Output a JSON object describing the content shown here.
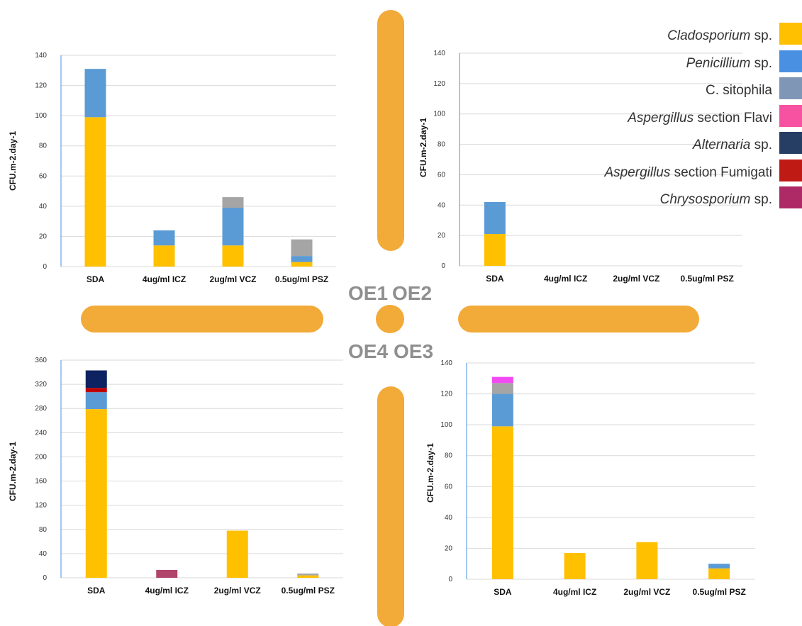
{
  "legend": [
    {
      "genus": "Cladosporium",
      "suffix": " sp.",
      "italic": true,
      "color": "#FFC000"
    },
    {
      "genus": "Penicillium",
      "suffix": " sp.",
      "italic": true,
      "color": "#4A90E2"
    },
    {
      "genus": "",
      "suffix": "C. sitophila",
      "italic": false,
      "color": "#8096B6"
    },
    {
      "genus": "Aspergillus",
      "suffix": " section Flavi",
      "italic": true,
      "color": "#F752A2"
    },
    {
      "genus": "Alternaria",
      "suffix": " sp.",
      "italic": true,
      "color": "#263E63"
    },
    {
      "genus": "Aspergillus",
      "suffix": " section  Fumigati",
      "italic": true,
      "color": "#C01A14"
    },
    {
      "genus": "Chrysosporium",
      "suffix": " sp.",
      "italic": true,
      "color": "#AD2A66"
    }
  ],
  "zones": {
    "oe1": "OE1",
    "oe2": "OE2",
    "oe3": "OE3",
    "oe4": "OE4"
  },
  "decor_color": "#F2AA38",
  "chart_data": [
    {
      "type": "bar",
      "stacked": true,
      "panel": "top-left",
      "ylabel": "CFU.m-2.day-1",
      "ylim": [
        0,
        140
      ],
      "yticks": [
        0,
        20,
        40,
        60,
        80,
        100,
        120,
        140
      ],
      "categories": [
        "SDA",
        "4ug/ml ICZ",
        "2ug/ml VCZ",
        "0.5ug/ml PSZ"
      ],
      "series": [
        {
          "color": "#FFC000",
          "values": [
            99,
            14,
            14,
            3
          ]
        },
        {
          "color": "#5B9BD5",
          "values": [
            32,
            10,
            25,
            4
          ]
        },
        {
          "color": "#A5A5A5",
          "values": [
            0,
            0,
            7,
            11
          ]
        }
      ]
    },
    {
      "type": "bar",
      "stacked": true,
      "panel": "top-right",
      "ylabel": "CFU.m-2.day-1",
      "ylim": [
        0,
        140
      ],
      "yticks": [
        0,
        20,
        40,
        60,
        80,
        100,
        120,
        140
      ],
      "categories": [
        "SDA",
        "4ug/ml ICZ",
        "2ug/ml VCZ",
        "0.5ug/ml PSZ"
      ],
      "series": [
        {
          "color": "#FFC000",
          "values": [
            21,
            0,
            0,
            0
          ]
        },
        {
          "color": "#5B9BD5",
          "values": [
            21,
            0,
            0,
            0
          ]
        }
      ]
    },
    {
      "type": "bar",
      "stacked": true,
      "panel": "bottom-left",
      "ylabel": "CFU.m-2.day-1",
      "ylim": [
        0,
        360
      ],
      "yticks": [
        0,
        40,
        80,
        120,
        160,
        200,
        240,
        280,
        320,
        360
      ],
      "categories": [
        "SDA",
        "4ug/ml ICZ",
        "2ug/ml VCZ",
        "0.5ug/ml PSZ"
      ],
      "series": [
        {
          "color": "#FFC000",
          "values": [
            279,
            0,
            78,
            4
          ]
        },
        {
          "color": "#5B9BD5",
          "values": [
            28,
            0,
            0,
            0
          ]
        },
        {
          "color": "#A5A5A5",
          "values": [
            0,
            0,
            0,
            3
          ]
        },
        {
          "color": "#C00000",
          "values": [
            7,
            0,
            0,
            0
          ]
        },
        {
          "color": "#0D2260",
          "values": [
            29,
            0,
            0,
            0
          ]
        },
        {
          "color": "#B0446A",
          "values": [
            0,
            13,
            0,
            0
          ]
        }
      ]
    },
    {
      "type": "bar",
      "stacked": true,
      "panel": "bottom-right",
      "ylabel": "CFU.m-2.day-1",
      "ylim": [
        0,
        140
      ],
      "yticks": [
        0,
        20,
        40,
        60,
        80,
        100,
        120,
        140
      ],
      "categories": [
        "SDA",
        "4ug/ml ICZ",
        "2ug/ml VCZ",
        "0.5ug/ml PSZ"
      ],
      "series": [
        {
          "color": "#FFC000",
          "values": [
            99,
            17,
            24,
            7
          ]
        },
        {
          "color": "#5B9BD5",
          "values": [
            21,
            0,
            0,
            3
          ]
        },
        {
          "color": "#A5A5A5",
          "values": [
            7,
            0,
            0,
            0
          ]
        },
        {
          "color": "#F24AF2",
          "values": [
            4,
            0,
            0,
            0
          ]
        }
      ]
    }
  ]
}
